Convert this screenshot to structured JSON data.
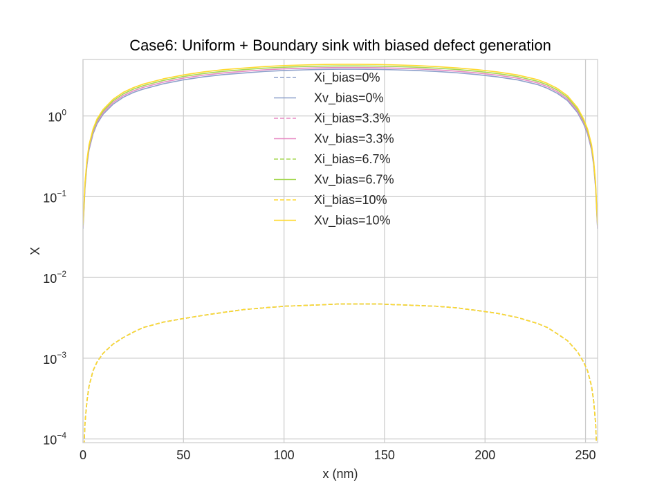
{
  "chart_data": {
    "type": "line",
    "title": "Case6: Uniform + Boundary sink with biased defect generation",
    "xlabel": "x (nm)",
    "ylabel": "X",
    "xlim": [
      0,
      256
    ],
    "ylim": [
      9e-05,
      5
    ],
    "yscale": "log",
    "grid": true,
    "legend_position": "upper center",
    "x_ticks": [
      0,
      50,
      100,
      150,
      200,
      250
    ],
    "y_ticks": [
      {
        "value": 0.0001,
        "base": "10",
        "exp": "−4"
      },
      {
        "value": 0.001,
        "base": "10",
        "exp": "−3"
      },
      {
        "value": 0.01,
        "base": "10",
        "exp": "−2"
      },
      {
        "value": 0.1,
        "base": "10",
        "exp": "−1"
      },
      {
        "value": 1,
        "base": "10",
        "exp": "0"
      }
    ],
    "x": [
      0,
      0.5,
      1,
      2,
      3,
      5,
      7,
      10,
      15,
      20,
      25,
      30,
      40,
      50,
      60,
      70,
      80,
      90,
      100,
      110,
      120,
      128,
      136,
      146,
      156,
      166,
      176,
      186,
      196,
      206,
      216,
      226,
      231,
      236,
      241,
      246,
      249,
      251,
      253,
      254,
      255,
      255.5,
      256
    ],
    "series": [
      {
        "name": "Xi_bias=0%",
        "color": "#8da0cb",
        "dash": true,
        "y": [
          5e-05,
          8e-05,
          0.00016,
          0.0003,
          0.00045,
          0.0007,
          0.0009,
          0.00115,
          0.0015,
          0.0018,
          0.0021,
          0.0024,
          0.0028,
          0.0031,
          0.0034,
          0.0037,
          0.004,
          0.0042,
          0.0044,
          0.0045,
          0.0046,
          0.0047,
          0.0047,
          0.0047,
          0.0046,
          0.0045,
          0.0044,
          0.0042,
          0.0039,
          0.0036,
          0.0032,
          0.0027,
          0.0024,
          0.002,
          0.00165,
          0.0012,
          0.0009,
          0.0007,
          0.00045,
          0.0003,
          0.00016,
          8e-05,
          5e-05
        ]
      },
      {
        "name": "Xv_bias=0%",
        "color": "#8da0cb",
        "dash": false,
        "y": [
          0.04,
          0.07,
          0.13,
          0.25,
          0.38,
          0.6,
          0.8,
          1.05,
          1.4,
          1.7,
          1.95,
          2.15,
          2.5,
          2.8,
          3.05,
          3.25,
          3.4,
          3.55,
          3.65,
          3.72,
          3.77,
          3.79,
          3.79,
          3.77,
          3.72,
          3.65,
          3.55,
          3.42,
          3.25,
          3.05,
          2.8,
          2.45,
          2.2,
          1.9,
          1.55,
          1.1,
          0.8,
          0.6,
          0.38,
          0.25,
          0.13,
          0.07,
          0.04
        ]
      },
      {
        "name": "Xi_bias=3.3%",
        "color": "#e78ac3",
        "dash": true,
        "y": [
          5e-05,
          8e-05,
          0.00016,
          0.0003,
          0.00045,
          0.0007,
          0.0009,
          0.00115,
          0.0015,
          0.0018,
          0.0021,
          0.0024,
          0.0028,
          0.0031,
          0.0034,
          0.0037,
          0.004,
          0.0042,
          0.0044,
          0.0045,
          0.0046,
          0.0047,
          0.0047,
          0.0047,
          0.0046,
          0.0045,
          0.0044,
          0.0042,
          0.0039,
          0.0036,
          0.0032,
          0.0027,
          0.0024,
          0.002,
          0.00165,
          0.0012,
          0.0009,
          0.0007,
          0.00045,
          0.0003,
          0.00016,
          8e-05,
          5e-05
        ]
      },
      {
        "name": "Xv_bias=3.3%",
        "color": "#e78ac3",
        "dash": false,
        "y": [
          0.042,
          0.074,
          0.137,
          0.26,
          0.4,
          0.63,
          0.84,
          1.1,
          1.47,
          1.78,
          2.04,
          2.26,
          2.62,
          2.94,
          3.2,
          3.41,
          3.57,
          3.72,
          3.83,
          3.9,
          3.95,
          3.97,
          3.97,
          3.95,
          3.9,
          3.83,
          3.72,
          3.58,
          3.41,
          3.2,
          2.94,
          2.57,
          2.31,
          1.99,
          1.62,
          1.15,
          0.84,
          0.63,
          0.4,
          0.26,
          0.137,
          0.074,
          0.042
        ]
      },
      {
        "name": "Xi_bias=6.7%",
        "color": "#a6d854",
        "dash": true,
        "y": [
          5e-05,
          8e-05,
          0.00016,
          0.0003,
          0.00045,
          0.0007,
          0.0009,
          0.00115,
          0.0015,
          0.0018,
          0.0021,
          0.0024,
          0.0028,
          0.0031,
          0.0034,
          0.0037,
          0.004,
          0.0042,
          0.0044,
          0.0045,
          0.0046,
          0.0047,
          0.0047,
          0.0047,
          0.0046,
          0.0045,
          0.0044,
          0.0042,
          0.0039,
          0.0036,
          0.0032,
          0.0027,
          0.0024,
          0.002,
          0.00165,
          0.0012,
          0.0009,
          0.0007,
          0.00045,
          0.0003,
          0.00016,
          8e-05,
          5e-05
        ]
      },
      {
        "name": "Xv_bias=6.7%",
        "color": "#a6d854",
        "dash": false,
        "y": [
          0.044,
          0.077,
          0.143,
          0.275,
          0.42,
          0.66,
          0.88,
          1.15,
          1.54,
          1.87,
          2.14,
          2.37,
          2.75,
          3.08,
          3.35,
          3.57,
          3.74,
          3.9,
          4.01,
          4.09,
          4.14,
          4.16,
          4.16,
          4.14,
          4.09,
          4.01,
          3.9,
          3.76,
          3.57,
          3.35,
          3.08,
          2.69,
          2.42,
          2.09,
          1.7,
          1.21,
          0.88,
          0.66,
          0.42,
          0.275,
          0.143,
          0.077,
          0.044
        ]
      },
      {
        "name": "Xi_bias=10%",
        "color": "#ffd92f",
        "dash": true,
        "y": [
          5e-05,
          8e-05,
          0.00016,
          0.0003,
          0.00045,
          0.0007,
          0.0009,
          0.00115,
          0.0015,
          0.0018,
          0.0021,
          0.0024,
          0.0028,
          0.0031,
          0.0034,
          0.0037,
          0.004,
          0.0042,
          0.0044,
          0.0045,
          0.0046,
          0.0047,
          0.0047,
          0.0047,
          0.0046,
          0.0045,
          0.0044,
          0.0042,
          0.0039,
          0.0036,
          0.0032,
          0.0027,
          0.0024,
          0.002,
          0.00165,
          0.0012,
          0.0009,
          0.0007,
          0.00045,
          0.0003,
          0.00016,
          8e-05,
          5e-05
        ]
      },
      {
        "name": "Xv_bias=10%",
        "color": "#ffd92f",
        "dash": false,
        "y": [
          0.046,
          0.08,
          0.15,
          0.29,
          0.44,
          0.69,
          0.92,
          1.2,
          1.61,
          1.96,
          2.24,
          2.48,
          2.88,
          3.22,
          3.51,
          3.74,
          3.91,
          4.08,
          4.2,
          4.28,
          4.34,
          4.36,
          4.36,
          4.34,
          4.28,
          4.2,
          4.08,
          3.93,
          3.74,
          3.51,
          3.22,
          2.82,
          2.53,
          2.19,
          1.78,
          1.27,
          0.92,
          0.69,
          0.44,
          0.29,
          0.15,
          0.08,
          0.046
        ]
      }
    ]
  }
}
